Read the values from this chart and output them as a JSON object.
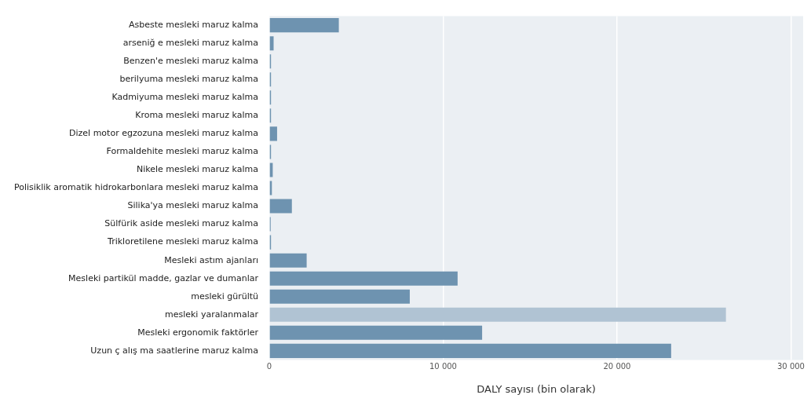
{
  "chart_data": {
    "type": "bar",
    "orientation": "horizontal",
    "xlabel": "DALY sayısı (bin olarak)",
    "categories": [
      "Asbeste mesleki maruz kalma",
      "arseniğ e mesleki maruz kalma",
      "Benzen'e mesleki maruz kalma",
      "berilyuma mesleki maruz kalma",
      "Kadmiyuma mesleki maruz kalma",
      "Kroma mesleki maruz kalma",
      "Dizel motor egzozuna mesleki maruz kalma",
      "Formaldehite mesleki maruz kalma",
      "Nikele mesleki maruz kalma",
      "Polisiklik aromatik hidrokarbonlara mesleki maruz kalma",
      "Silika'ya mesleki maruz kalma",
      "Sülfürik aside mesleki maruz kalma",
      "Trikloretilene mesleki maruz kalma",
      "Mesleki astım ajanları",
      "Mesleki partikül madde, gazlar ve dumanlar",
      "mesleki gürültü",
      "mesleki yaralanmalar",
      "Mesleki ergonomik faktörler",
      "Uzun ç alış ma saatlerine maruz kalma"
    ],
    "values": [
      4000,
      250,
      100,
      100,
      100,
      100,
      450,
      100,
      200,
      150,
      1300,
      80,
      100,
      2150,
      10830,
      8080,
      26260,
      12240,
      23110
    ],
    "colors": [
      "#6e93b0",
      "#6e93b0",
      "#6e93b0",
      "#6e93b0",
      "#6e93b0",
      "#6e93b0",
      "#6e93b0",
      "#6e93b0",
      "#6e93b0",
      "#6e93b0",
      "#6e93b0",
      "#6e93b0",
      "#6e93b0",
      "#6e93b0",
      "#6e93b0",
      "#6e93b0",
      "#b0c3d3",
      "#6e93b0",
      "#6e93b0"
    ],
    "xlim": [
      0,
      30700
    ],
    "xticks": [
      {
        "value": 0,
        "label": "0"
      },
      {
        "value": 10000,
        "label": "10 000"
      },
      {
        "value": 20000,
        "label": "20 000"
      },
      {
        "value": 30000,
        "label": "30 000"
      }
    ],
    "grid": "x",
    "legend": false
  }
}
